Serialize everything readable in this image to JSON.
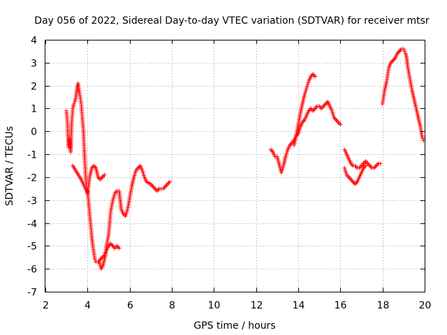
{
  "chart_data": {
    "type": "scatter",
    "title": "Day 056 of 2022, Sidereal Day-to-day VTEC variation (SDTVAR) for receiver mtsr",
    "xlabel": "GPS time / hours",
    "ylabel": "SDTVAR / TECUs",
    "xlim": [
      2,
      20
    ],
    "ylim": [
      -7,
      4
    ],
    "xticks": [
      "2",
      "4",
      "6",
      "8",
      "10",
      "12",
      "14",
      "16",
      "18",
      "20"
    ],
    "yticks": [
      "4",
      "3",
      "2",
      "1",
      "0",
      "-1",
      "-2",
      "-3",
      "-4",
      "-5",
      "-6",
      "-7"
    ],
    "grid": true,
    "marker": "+",
    "series": [
      {
        "name": "SDTVAR",
        "color": "#ff0000",
        "segments": [
          [
            [
              3.0,
              0.9
            ],
            [
              3.05,
              0.3
            ],
            [
              3.08,
              -0.4
            ],
            [
              3.1,
              -0.7
            ],
            [
              3.15,
              -0.3
            ],
            [
              3.2,
              -0.9
            ],
            [
              3.25,
              0.4
            ],
            [
              3.3,
              1.0
            ],
            [
              3.35,
              1.2
            ],
            [
              3.4,
              1.3
            ],
            [
              3.45,
              1.5
            ],
            [
              3.5,
              1.9
            ],
            [
              3.55,
              2.1
            ],
            [
              3.6,
              1.8
            ],
            [
              3.65,
              1.5
            ],
            [
              3.7,
              1.2
            ],
            [
              3.75,
              0.6
            ],
            [
              3.8,
              0.1
            ],
            [
              3.85,
              -0.9
            ],
            [
              3.9,
              -1.8
            ],
            [
              3.95,
              -2.5
            ],
            [
              4.0,
              -2.6
            ],
            [
              4.05,
              -3.1
            ],
            [
              4.1,
              -3.6
            ],
            [
              4.15,
              -4.1
            ],
            [
              4.2,
              -4.6
            ],
            [
              4.25,
              -5.0
            ],
            [
              4.3,
              -5.3
            ],
            [
              4.35,
              -5.6
            ],
            [
              4.4,
              -5.7
            ],
            [
              4.5,
              -5.7
            ],
            [
              4.6,
              -5.6
            ],
            [
              4.7,
              -5.5
            ],
            [
              4.8,
              -5.4
            ],
            [
              4.85,
              -5.3
            ],
            [
              4.9,
              -5.2
            ],
            [
              5.0,
              -5.0
            ],
            [
              5.1,
              -4.9
            ],
            [
              5.2,
              -5.0
            ],
            [
              5.3,
              -5.1
            ],
            [
              5.4,
              -5.0
            ],
            [
              5.5,
              -5.1
            ]
          ],
          [
            [
              3.3,
              -1.5
            ],
            [
              3.5,
              -1.8
            ],
            [
              3.7,
              -2.1
            ],
            [
              3.8,
              -2.3
            ],
            [
              3.9,
              -2.5
            ],
            [
              4.0,
              -2.7
            ],
            [
              4.1,
              -2.0
            ],
            [
              4.2,
              -1.6
            ],
            [
              4.3,
              -1.5
            ],
            [
              4.4,
              -1.6
            ],
            [
              4.5,
              -2.0
            ],
            [
              4.6,
              -2.1
            ],
            [
              4.7,
              -2.0
            ],
            [
              4.8,
              -1.9
            ]
          ],
          [
            [
              4.55,
              -5.7
            ],
            [
              4.65,
              -6.0
            ],
            [
              4.75,
              -5.8
            ],
            [
              4.85,
              -5.4
            ],
            [
              4.9,
              -5.0
            ],
            [
              5.0,
              -4.5
            ],
            [
              5.05,
              -4.0
            ],
            [
              5.1,
              -3.5
            ],
            [
              5.2,
              -3.0
            ],
            [
              5.3,
              -2.7
            ],
            [
              5.4,
              -2.6
            ],
            [
              5.5,
              -2.6
            ],
            [
              5.55,
              -3.0
            ],
            [
              5.6,
              -3.4
            ],
            [
              5.7,
              -3.6
            ],
            [
              5.8,
              -3.7
            ],
            [
              5.9,
              -3.4
            ],
            [
              6.0,
              -2.9
            ],
            [
              6.1,
              -2.4
            ],
            [
              6.2,
              -2.0
            ],
            [
              6.3,
              -1.7
            ],
            [
              6.4,
              -1.6
            ],
            [
              6.5,
              -1.5
            ],
            [
              6.6,
              -1.7
            ],
            [
              6.7,
              -2.0
            ],
            [
              6.8,
              -2.2
            ],
            [
              7.0,
              -2.3
            ],
            [
              7.2,
              -2.5
            ],
            [
              7.3,
              -2.6
            ],
            [
              7.4,
              -2.5
            ],
            [
              7.6,
              -2.5
            ],
            [
              7.8,
              -2.3
            ],
            [
              7.9,
              -2.2
            ]
          ],
          [
            [
              12.7,
              -0.8
            ],
            [
              12.8,
              -0.9
            ],
            [
              12.9,
              -1.1
            ],
            [
              13.0,
              -1.1
            ],
            [
              13.2,
              -1.8
            ],
            [
              13.3,
              -1.5
            ],
            [
              13.4,
              -1.1
            ],
            [
              13.5,
              -0.8
            ],
            [
              13.6,
              -0.6
            ],
            [
              13.7,
              -0.5
            ],
            [
              13.8,
              -0.4
            ],
            [
              13.9,
              -0.2
            ],
            [
              14.0,
              -0.1
            ],
            [
              14.1,
              0.2
            ],
            [
              14.2,
              0.4
            ],
            [
              14.3,
              0.5
            ],
            [
              14.4,
              0.7
            ],
            [
              14.5,
              0.9
            ],
            [
              14.6,
              1.0
            ],
            [
              14.7,
              0.9
            ],
            [
              14.8,
              1.0
            ],
            [
              14.9,
              1.1
            ],
            [
              15.0,
              1.1
            ],
            [
              15.1,
              1.0
            ],
            [
              15.2,
              1.1
            ],
            [
              15.3,
              1.2
            ],
            [
              15.4,
              1.3
            ],
            [
              15.5,
              1.1
            ],
            [
              15.6,
              0.9
            ],
            [
              15.7,
              0.6
            ],
            [
              15.8,
              0.5
            ],
            [
              15.9,
              0.4
            ],
            [
              16.0,
              0.3
            ]
          ],
          [
            [
              13.8,
              -0.6
            ],
            [
              13.9,
              -0.2
            ],
            [
              14.0,
              0.3
            ],
            [
              14.1,
              0.8
            ],
            [
              14.2,
              1.2
            ],
            [
              14.3,
              1.6
            ],
            [
              14.4,
              1.9
            ],
            [
              14.5,
              2.2
            ],
            [
              14.6,
              2.4
            ],
            [
              14.7,
              2.5
            ],
            [
              14.8,
              2.4
            ]
          ],
          [
            [
              16.2,
              -0.8
            ],
            [
              16.3,
              -1.0
            ],
            [
              16.4,
              -1.2
            ],
            [
              16.5,
              -1.4
            ],
            [
              16.6,
              -1.5
            ],
            [
              16.7,
              -1.5
            ],
            [
              16.8,
              -1.6
            ],
            [
              16.9,
              -1.6
            ],
            [
              17.0,
              -1.5
            ],
            [
              17.1,
              -1.4
            ],
            [
              17.2,
              -1.3
            ],
            [
              17.3,
              -1.4
            ],
            [
              17.4,
              -1.5
            ],
            [
              17.5,
              -1.6
            ],
            [
              17.6,
              -1.6
            ],
            [
              17.7,
              -1.5
            ],
            [
              17.8,
              -1.4
            ],
            [
              17.9,
              -1.4
            ]
          ],
          [
            [
              16.2,
              -1.6
            ],
            [
              16.3,
              -1.9
            ],
            [
              16.4,
              -2.0
            ],
            [
              16.5,
              -2.1
            ],
            [
              16.6,
              -2.2
            ],
            [
              16.7,
              -2.3
            ],
            [
              16.8,
              -2.2
            ],
            [
              16.9,
              -2.0
            ],
            [
              17.0,
              -1.8
            ],
            [
              17.1,
              -1.6
            ],
            [
              17.2,
              -1.5
            ]
          ],
          [
            [
              18.0,
              1.2
            ],
            [
              18.05,
              1.5
            ],
            [
              18.1,
              1.8
            ],
            [
              18.2,
              2.2
            ],
            [
              18.25,
              2.5
            ],
            [
              18.3,
              2.8
            ],
            [
              18.4,
              3.0
            ],
            [
              18.5,
              3.1
            ],
            [
              18.6,
              3.2
            ],
            [
              18.7,
              3.4
            ],
            [
              18.8,
              3.5
            ],
            [
              18.9,
              3.6
            ],
            [
              19.0,
              3.6
            ],
            [
              19.05,
              3.5
            ],
            [
              19.1,
              3.4
            ],
            [
              19.15,
              3.2
            ],
            [
              19.2,
              2.8
            ],
            [
              19.3,
              2.3
            ],
            [
              19.4,
              1.8
            ],
            [
              19.5,
              1.4
            ],
            [
              19.6,
              1.0
            ],
            [
              19.7,
              0.6
            ],
            [
              19.8,
              0.2
            ],
            [
              19.85,
              -0.1
            ],
            [
              19.9,
              -0.3
            ],
            [
              19.95,
              -0.4
            ]
          ]
        ]
      }
    ]
  }
}
